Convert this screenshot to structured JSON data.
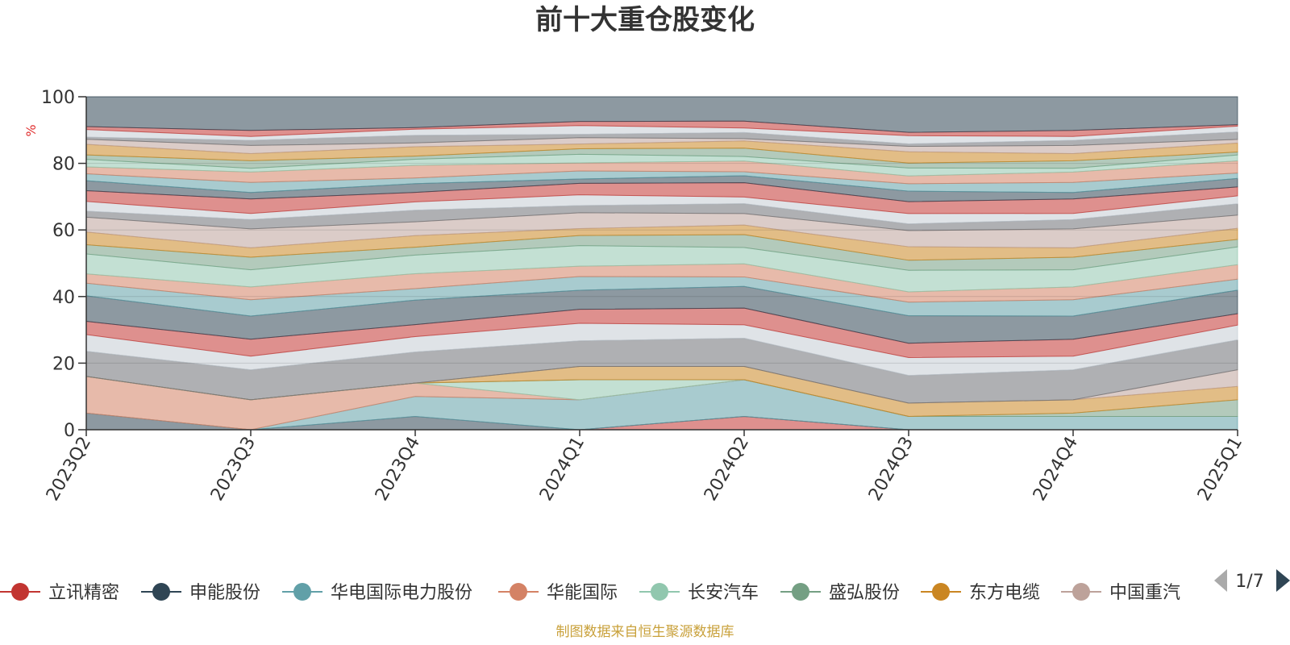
{
  "chart_data": {
    "type": "area",
    "title": "前十大重仓股变化",
    "unit": "%",
    "ylim": [
      0,
      100
    ],
    "y_ticks": [
      "0",
      "20",
      "40",
      "60",
      "80",
      "100"
    ],
    "categories": [
      "2023Q2",
      "2023Q3",
      "2023Q4",
      "2024Q1",
      "2024Q2",
      "2024Q3",
      "2024Q4",
      "2025Q1"
    ],
    "grid": true,
    "legend_position": "bottom",
    "series": [
      {
        "name": "立讯精密",
        "color": "#c23531",
        "values": [
          0,
          0,
          0,
          0,
          4,
          0,
          0,
          0
        ]
      },
      {
        "name": "申能股份",
        "color": "#2f4554",
        "values": [
          5,
          0,
          4,
          0,
          0,
          0,
          0,
          0
        ]
      },
      {
        "name": "华电国际电力股份",
        "color": "#61a0a8",
        "values": [
          0,
          0,
          6,
          9,
          11,
          4,
          4,
          4
        ]
      },
      {
        "name": "华能国际",
        "color": "#d48265",
        "values": [
          11,
          9,
          4,
          0,
          0,
          0,
          0,
          0
        ]
      },
      {
        "name": "长安汽车",
        "color": "#91c7ae",
        "values": [
          0,
          0,
          0,
          6,
          0,
          0,
          0,
          0
        ]
      },
      {
        "name": "盛弘股份",
        "color": "#749f83",
        "values": [
          0,
          0,
          0,
          0,
          0,
          0,
          1,
          5
        ]
      },
      {
        "name": "东方电缆",
        "color": "#ca8622",
        "values": [
          0,
          0,
          0,
          4,
          4,
          4,
          4,
          4
        ]
      },
      {
        "name": "中国重汽",
        "color": "#bda29a",
        "values": [
          0,
          0,
          0,
          0,
          0,
          0,
          0,
          5
        ]
      }
    ],
    "extra_band_colors": [
      "#6e7074",
      "#c4ccd3",
      "#c23531",
      "#2f4554",
      "#61a0a8",
      "#d48265",
      "#91c7ae",
      "#749f83",
      "#ca8622",
      "#bda29a",
      "#6e7074",
      "#c4ccd3",
      "#c23531",
      "#2f4554",
      "#61a0a8",
      "#d48265",
      "#91c7ae",
      "#749f83",
      "#ca8622",
      "#bda29a",
      "#6e7074",
      "#c4ccd3",
      "#c23531",
      "#2f4554"
    ]
  },
  "legend_page": "1/7",
  "source_note": "制图数据来自恒生聚源数据库"
}
